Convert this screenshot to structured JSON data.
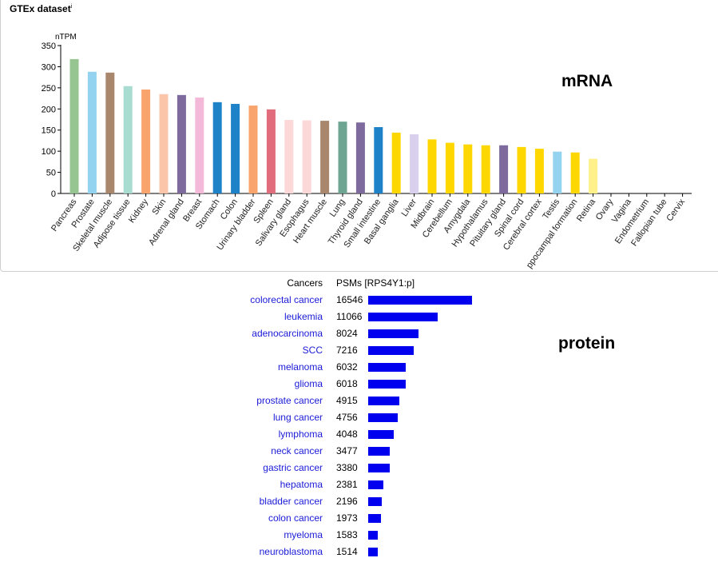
{
  "panel": {
    "title": "GTEx dataset",
    "info_mark": "i"
  },
  "labels": {
    "mrna": "mRNA",
    "protein": "protein"
  },
  "chart_data": [
    {
      "type": "bar",
      "ylabel": "nTPM",
      "ylim": [
        0,
        350
      ],
      "yticks": [
        0,
        50,
        100,
        150,
        200,
        250,
        300,
        350
      ],
      "grid": false,
      "categories": [
        "Pancreas",
        "Prostate",
        "Skeletal muscle",
        "Adipose tissue",
        "Kidney",
        "Skin",
        "Adrenal gland",
        "Breast",
        "Stomach",
        "Colon",
        "Urinary bladder",
        "Spleen",
        "Salivary gland",
        "Esophagus",
        "Heart muscle",
        "Lung",
        "Thyroid gland",
        "Small intestine",
        "Basal ganglia",
        "Liver",
        "Midbrain",
        "Cerebellum",
        "Amygdala",
        "Hypothalamus",
        "Pituitary gland",
        "Spinal cord",
        "Cerebral cortex",
        "Testis",
        "Hippocampal formation",
        "Retina",
        "Ovary",
        "Vagina",
        "Endometrium",
        "Fallopian tube",
        "Cervix"
      ],
      "values": [
        318,
        288,
        286,
        254,
        246,
        235,
        233,
        227,
        216,
        212,
        208,
        199,
        174,
        173,
        172,
        170,
        168,
        157,
        144,
        140,
        128,
        120,
        116,
        114,
        114,
        110,
        106,
        99,
        97,
        82,
        0,
        0,
        0,
        0,
        0
      ],
      "colors": [
        "#96c592",
        "#94d3ef",
        "#a9876d",
        "#a8dcd0",
        "#f8a46c",
        "#fac5a8",
        "#7e6a9c",
        "#f4b8d8",
        "#1e82c8",
        "#1e82c8",
        "#f8a46c",
        "#e06c7c",
        "#fcd8d8",
        "#fcd8d8",
        "#a9876d",
        "#6ea492",
        "#7e6a9c",
        "#1e82c8",
        "#ffd700",
        "#d8d0ec",
        "#ffd700",
        "#ffd700",
        "#ffd700",
        "#ffd700",
        "#7e6a9c",
        "#ffd700",
        "#ffd700",
        "#94d3ef",
        "#ffd700",
        "#fff08a",
        "#f4b8d8",
        "#f4b8d8",
        "#f4b8d8",
        "#f4b8d8",
        "#f4b8d8"
      ],
      "visible_categories": [
        "Pancreas",
        "Prostate",
        "Skeletal muscle",
        "Adipose tissue",
        "Kidney",
        "Skin",
        "Adrenal gland",
        "Breast",
        "Stomach",
        "Colon",
        "Urinary bladder",
        "Spleen",
        "Salivary gland",
        "Esophagus",
        "Heart muscle",
        "Lung",
        "Thyroid gland",
        "Small intestine",
        "Basal ganglia",
        "Liver",
        "Midbrain",
        "Cerebellum",
        "Amygdala",
        "Hypothalamus",
        "Pituitary gland",
        "Spinal cord",
        "Cerebral cortex",
        "Testis",
        "ppocampal formation",
        "Retina",
        "Ovary",
        "Vagina",
        "Endometrium",
        "Fallopian tube",
        "Cervix"
      ]
    },
    {
      "type": "table",
      "columns": [
        "Cancers",
        "PSMs [RPS4Y1:p]"
      ],
      "bar_color": "#0000ee",
      "rows": [
        {
          "name": "colorectal cancer",
          "value": 16546
        },
        {
          "name": "leukemia",
          "value": 11066
        },
        {
          "name": "adenocarcinoma",
          "value": 8024
        },
        {
          "name": "SCC",
          "value": 7216
        },
        {
          "name": "melanoma",
          "value": 6032
        },
        {
          "name": "glioma",
          "value": 6018
        },
        {
          "name": "prostate cancer",
          "value": 4915
        },
        {
          "name": "lung cancer",
          "value": 4756
        },
        {
          "name": "lymphoma",
          "value": 4048
        },
        {
          "name": "neck cancer",
          "value": 3477
        },
        {
          "name": "gastric cancer",
          "value": 3380
        },
        {
          "name": "hepatoma",
          "value": 2381
        },
        {
          "name": "bladder cancer",
          "value": 2196
        },
        {
          "name": "colon cancer",
          "value": 1973
        },
        {
          "name": "myeloma",
          "value": 1583
        },
        {
          "name": "neuroblastoma",
          "value": 1514
        }
      ]
    }
  ]
}
